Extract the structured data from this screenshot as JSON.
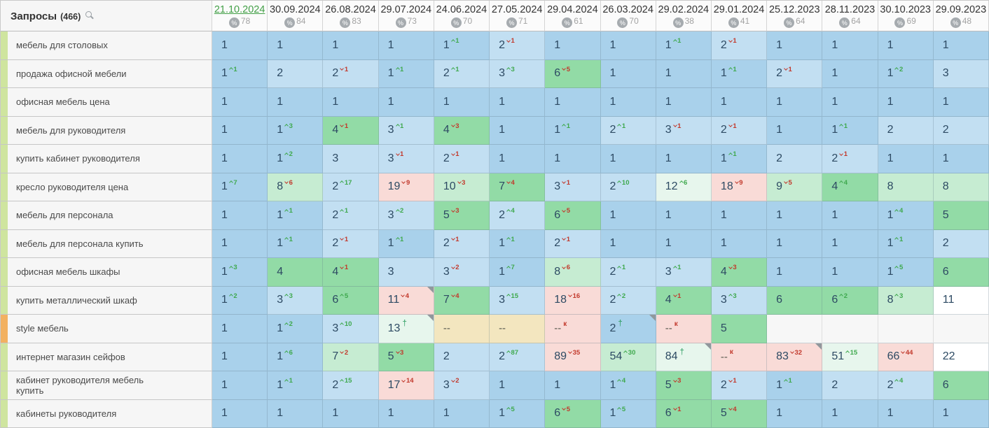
{
  "header": {
    "title": "Запросы",
    "count": "(466)",
    "search_icon": "magnifier",
    "percent_icon": "%"
  },
  "palette": {
    "selected_date_green": "#43a047",
    "change_up_green": "#3fa94e",
    "change_down_red": "#c2392c",
    "cell_blue": "#a9d1eb",
    "cell_blue_light": "#c2dff2",
    "cell_green": "#92dba6",
    "cell_green_pale": "#c6ecd2",
    "cell_green_faint": "#e7f6ed",
    "cell_pink": "#f9dbd7",
    "cell_tan": "#f3e6bf",
    "cell_white": "#ffffff",
    "cell_empty": "#f7f7f7",
    "strip_green": "#cfe59f",
    "strip_orange": "#f2b161",
    "cell_text": "#2d4a63"
  },
  "columns": [
    {
      "date": "21.10.2024",
      "visibility": "78",
      "selected": true
    },
    {
      "date": "30.09.2024",
      "visibility": "84"
    },
    {
      "date": "26.08.2024",
      "visibility": "83"
    },
    {
      "date": "29.07.2024",
      "visibility": "73"
    },
    {
      "date": "24.06.2024",
      "visibility": "70"
    },
    {
      "date": "27.05.2024",
      "visibility": "71"
    },
    {
      "date": "29.04.2024",
      "visibility": "61"
    },
    {
      "date": "26.03.2024",
      "visibility": "70"
    },
    {
      "date": "29.02.2024",
      "visibility": "38"
    },
    {
      "date": "29.01.2024",
      "visibility": "41"
    },
    {
      "date": "25.12.2023",
      "visibility": "64"
    },
    {
      "date": "28.11.2023",
      "visibility": "64"
    },
    {
      "date": "30.10.2023",
      "visibility": "69"
    },
    {
      "date": "29.09.2023",
      "visibility": "48"
    }
  ],
  "rows": [
    {
      "keyword": "мебель для столовых",
      "strip": "green",
      "cells": [
        {
          "v": "1",
          "bg": "b"
        },
        {
          "v": "1",
          "bg": "b"
        },
        {
          "v": "1",
          "bg": "b"
        },
        {
          "v": "1",
          "bg": "b"
        },
        {
          "v": "1",
          "chg": 1,
          "dir": "up",
          "bg": "b"
        },
        {
          "v": "2",
          "chg": 1,
          "dir": "down",
          "bg": "bl"
        },
        {
          "v": "1",
          "bg": "b"
        },
        {
          "v": "1",
          "bg": "b"
        },
        {
          "v": "1",
          "chg": 1,
          "dir": "up",
          "bg": "b"
        },
        {
          "v": "2",
          "chg": 1,
          "dir": "down",
          "bg": "bl"
        },
        {
          "v": "1",
          "bg": "b"
        },
        {
          "v": "1",
          "bg": "b"
        },
        {
          "v": "1",
          "bg": "b"
        },
        {
          "v": "1",
          "bg": "b"
        }
      ]
    },
    {
      "keyword": "продажа офисной мебели",
      "strip": "green",
      "cells": [
        {
          "v": "1",
          "chg": 1,
          "dir": "up",
          "bg": "b"
        },
        {
          "v": "2",
          "bg": "bl"
        },
        {
          "v": "2",
          "chg": 1,
          "dir": "down",
          "bg": "bl"
        },
        {
          "v": "1",
          "chg": 1,
          "dir": "up",
          "bg": "b"
        },
        {
          "v": "2",
          "chg": 1,
          "dir": "up",
          "bg": "bl"
        },
        {
          "v": "3",
          "chg": 3,
          "dir": "up",
          "bg": "bl"
        },
        {
          "v": "6",
          "chg": 5,
          "dir": "down",
          "bg": "g"
        },
        {
          "v": "1",
          "bg": "b"
        },
        {
          "v": "1",
          "bg": "b"
        },
        {
          "v": "1",
          "chg": 1,
          "dir": "up",
          "bg": "b"
        },
        {
          "v": "2",
          "chg": 1,
          "dir": "down",
          "bg": "bl"
        },
        {
          "v": "1",
          "bg": "b"
        },
        {
          "v": "1",
          "chg": 2,
          "dir": "up",
          "bg": "b"
        },
        {
          "v": "3",
          "bg": "bl"
        }
      ]
    },
    {
      "keyword": "офисная мебель цена",
      "strip": "green",
      "cells": [
        {
          "v": "1",
          "bg": "b"
        },
        {
          "v": "1",
          "bg": "b"
        },
        {
          "v": "1",
          "bg": "b"
        },
        {
          "v": "1",
          "bg": "b"
        },
        {
          "v": "1",
          "bg": "b"
        },
        {
          "v": "1",
          "bg": "b"
        },
        {
          "v": "1",
          "bg": "b"
        },
        {
          "v": "1",
          "bg": "b"
        },
        {
          "v": "1",
          "bg": "b"
        },
        {
          "v": "1",
          "bg": "b"
        },
        {
          "v": "1",
          "bg": "b"
        },
        {
          "v": "1",
          "bg": "b"
        },
        {
          "v": "1",
          "bg": "b"
        },
        {
          "v": "1",
          "bg": "b"
        }
      ]
    },
    {
      "keyword": "мебель для руководителя",
      "strip": "green",
      "cells": [
        {
          "v": "1",
          "bg": "b"
        },
        {
          "v": "1",
          "chg": 3,
          "dir": "up",
          "bg": "b"
        },
        {
          "v": "4",
          "chg": 1,
          "dir": "down",
          "bg": "g"
        },
        {
          "v": "3",
          "chg": 1,
          "dir": "up",
          "bg": "bl"
        },
        {
          "v": "4",
          "chg": 3,
          "dir": "down",
          "bg": "g"
        },
        {
          "v": "1",
          "bg": "b"
        },
        {
          "v": "1",
          "chg": 1,
          "dir": "up",
          "bg": "b"
        },
        {
          "v": "2",
          "chg": 1,
          "dir": "up",
          "bg": "bl"
        },
        {
          "v": "3",
          "chg": 1,
          "dir": "down",
          "bg": "bl"
        },
        {
          "v": "2",
          "chg": 1,
          "dir": "down",
          "bg": "bl"
        },
        {
          "v": "1",
          "bg": "b"
        },
        {
          "v": "1",
          "chg": 1,
          "dir": "up",
          "bg": "b"
        },
        {
          "v": "2",
          "bg": "bl"
        },
        {
          "v": "2",
          "bg": "bl"
        }
      ]
    },
    {
      "keyword": "купить кабинет руководителя",
      "strip": "green",
      "cells": [
        {
          "v": "1",
          "bg": "b"
        },
        {
          "v": "1",
          "chg": 2,
          "dir": "up",
          "bg": "b"
        },
        {
          "v": "3",
          "bg": "bl"
        },
        {
          "v": "3",
          "chg": 1,
          "dir": "down",
          "bg": "bl"
        },
        {
          "v": "2",
          "chg": 1,
          "dir": "down",
          "bg": "bl"
        },
        {
          "v": "1",
          "bg": "b"
        },
        {
          "v": "1",
          "bg": "b"
        },
        {
          "v": "1",
          "bg": "b"
        },
        {
          "v": "1",
          "bg": "b"
        },
        {
          "v": "1",
          "chg": 1,
          "dir": "up",
          "bg": "b"
        },
        {
          "v": "2",
          "bg": "bl"
        },
        {
          "v": "2",
          "chg": 1,
          "dir": "down",
          "bg": "bl"
        },
        {
          "v": "1",
          "bg": "b"
        },
        {
          "v": "1",
          "bg": "b"
        }
      ]
    },
    {
      "keyword": "кресло руководителя цена",
      "strip": "green",
      "cells": [
        {
          "v": "1",
          "chg": 7,
          "dir": "up",
          "bg": "b"
        },
        {
          "v": "8",
          "chg": 6,
          "dir": "down",
          "bg": "gp"
        },
        {
          "v": "2",
          "chg": 17,
          "dir": "up",
          "bg": "bl"
        },
        {
          "v": "19",
          "chg": 9,
          "dir": "down",
          "bg": "p"
        },
        {
          "v": "10",
          "chg": 3,
          "dir": "down",
          "bg": "gp"
        },
        {
          "v": "7",
          "chg": 4,
          "dir": "down",
          "bg": "g"
        },
        {
          "v": "3",
          "chg": 1,
          "dir": "down",
          "bg": "bl"
        },
        {
          "v": "2",
          "chg": 10,
          "dir": "up",
          "bg": "bl"
        },
        {
          "v": "12",
          "chg": 6,
          "dir": "up",
          "bg": "gf"
        },
        {
          "v": "18",
          "chg": 9,
          "dir": "down",
          "bg": "p"
        },
        {
          "v": "9",
          "chg": 5,
          "dir": "down",
          "bg": "gp"
        },
        {
          "v": "4",
          "chg": 4,
          "dir": "up",
          "bg": "g"
        },
        {
          "v": "8",
          "bg": "gp"
        },
        {
          "v": "8",
          "bg": "gp"
        }
      ]
    },
    {
      "keyword": "мебель для персонала",
      "strip": "green",
      "cells": [
        {
          "v": "1",
          "bg": "b"
        },
        {
          "v": "1",
          "chg": 1,
          "dir": "up",
          "bg": "b"
        },
        {
          "v": "2",
          "chg": 1,
          "dir": "up",
          "bg": "bl"
        },
        {
          "v": "3",
          "chg": 2,
          "dir": "up",
          "bg": "bl"
        },
        {
          "v": "5",
          "chg": 3,
          "dir": "down",
          "bg": "g"
        },
        {
          "v": "2",
          "chg": 4,
          "dir": "up",
          "bg": "bl"
        },
        {
          "v": "6",
          "chg": 5,
          "dir": "down",
          "bg": "g"
        },
        {
          "v": "1",
          "bg": "b"
        },
        {
          "v": "1",
          "bg": "b"
        },
        {
          "v": "1",
          "bg": "b"
        },
        {
          "v": "1",
          "bg": "b"
        },
        {
          "v": "1",
          "bg": "b"
        },
        {
          "v": "1",
          "chg": 4,
          "dir": "up",
          "bg": "b"
        },
        {
          "v": "5",
          "bg": "g"
        }
      ]
    },
    {
      "keyword": "мебель для персонала купить",
      "strip": "green",
      "cells": [
        {
          "v": "1",
          "bg": "b"
        },
        {
          "v": "1",
          "chg": 1,
          "dir": "up",
          "bg": "b"
        },
        {
          "v": "2",
          "chg": 1,
          "dir": "down",
          "bg": "bl"
        },
        {
          "v": "1",
          "chg": 1,
          "dir": "up",
          "bg": "b"
        },
        {
          "v": "2",
          "chg": 1,
          "dir": "down",
          "bg": "bl"
        },
        {
          "v": "1",
          "chg": 1,
          "dir": "up",
          "bg": "b"
        },
        {
          "v": "2",
          "chg": 1,
          "dir": "down",
          "bg": "bl"
        },
        {
          "v": "1",
          "bg": "b"
        },
        {
          "v": "1",
          "bg": "b"
        },
        {
          "v": "1",
          "bg": "b"
        },
        {
          "v": "1",
          "bg": "b"
        },
        {
          "v": "1",
          "bg": "b"
        },
        {
          "v": "1",
          "chg": 1,
          "dir": "up",
          "bg": "b"
        },
        {
          "v": "2",
          "bg": "bl"
        }
      ]
    },
    {
      "keyword": "офисная мебель шкафы",
      "strip": "green",
      "cells": [
        {
          "v": "1",
          "chg": 3,
          "dir": "up",
          "bg": "b"
        },
        {
          "v": "4",
          "bg": "g"
        },
        {
          "v": "4",
          "chg": 1,
          "dir": "down",
          "bg": "g"
        },
        {
          "v": "3",
          "bg": "bl"
        },
        {
          "v": "3",
          "chg": 2,
          "dir": "down",
          "bg": "bl"
        },
        {
          "v": "1",
          "chg": 7,
          "dir": "up",
          "bg": "b"
        },
        {
          "v": "8",
          "chg": 6,
          "dir": "down",
          "bg": "gp"
        },
        {
          "v": "2",
          "chg": 1,
          "dir": "up",
          "bg": "bl"
        },
        {
          "v": "3",
          "chg": 1,
          "dir": "up",
          "bg": "bl"
        },
        {
          "v": "4",
          "chg": 3,
          "dir": "down",
          "bg": "g"
        },
        {
          "v": "1",
          "bg": "b"
        },
        {
          "v": "1",
          "bg": "b"
        },
        {
          "v": "1",
          "chg": 5,
          "dir": "up",
          "bg": "b"
        },
        {
          "v": "6",
          "bg": "g"
        }
      ]
    },
    {
      "keyword": "купить металлический шкаф",
      "strip": "green",
      "cells": [
        {
          "v": "1",
          "chg": 2,
          "dir": "up",
          "bg": "b"
        },
        {
          "v": "3",
          "chg": 3,
          "dir": "up",
          "bg": "bl"
        },
        {
          "v": "6",
          "chg": 5,
          "dir": "up",
          "bg": "g"
        },
        {
          "v": "11",
          "chg": 4,
          "dir": "down",
          "bg": "p",
          "corner": true
        },
        {
          "v": "7",
          "chg": 4,
          "dir": "down",
          "bg": "g"
        },
        {
          "v": "3",
          "chg": 15,
          "dir": "up",
          "bg": "bl"
        },
        {
          "v": "18",
          "chg": 16,
          "dir": "down",
          "bg": "p"
        },
        {
          "v": "2",
          "chg": 2,
          "dir": "up",
          "bg": "bl"
        },
        {
          "v": "4",
          "chg": 1,
          "dir": "down",
          "bg": "g"
        },
        {
          "v": "3",
          "chg": 3,
          "dir": "up",
          "bg": "bl"
        },
        {
          "v": "6",
          "bg": "g"
        },
        {
          "v": "6",
          "chg": 2,
          "dir": "up",
          "bg": "g"
        },
        {
          "v": "8",
          "chg": 3,
          "dir": "up",
          "bg": "gp"
        },
        {
          "v": "11",
          "bg": "w"
        }
      ]
    },
    {
      "keyword": "style мебель",
      "strip": "orange",
      "cells": [
        {
          "v": "1",
          "bg": "b"
        },
        {
          "v": "1",
          "chg": 2,
          "dir": "up",
          "bg": "b"
        },
        {
          "v": "3",
          "chg": 10,
          "dir": "up",
          "bg": "bl"
        },
        {
          "v": "13",
          "dir": "new",
          "bg": "gf",
          "corner": true
        },
        {
          "v": "--",
          "bg": "t"
        },
        {
          "v": "--",
          "bg": "t"
        },
        {
          "v": "--",
          "dir": "out",
          "bg": "p"
        },
        {
          "v": "2",
          "dir": "new",
          "bg": "b",
          "corner": true
        },
        {
          "v": "--",
          "dir": "out",
          "bg": "p"
        },
        {
          "v": "5",
          "bg": "g"
        },
        {
          "bg": "e"
        },
        {
          "bg": "e"
        },
        {
          "bg": "e"
        },
        {
          "bg": "e"
        }
      ]
    },
    {
      "keyword": "интернет магазин сейфов",
      "strip": "green",
      "cells": [
        {
          "v": "1",
          "bg": "b"
        },
        {
          "v": "1",
          "chg": 6,
          "dir": "up",
          "bg": "b"
        },
        {
          "v": "7",
          "chg": 2,
          "dir": "down",
          "bg": "gp"
        },
        {
          "v": "5",
          "chg": 3,
          "dir": "down",
          "bg": "g"
        },
        {
          "v": "2",
          "bg": "bl"
        },
        {
          "v": "2",
          "chg": 87,
          "dir": "up",
          "bg": "bl"
        },
        {
          "v": "89",
          "chg": 35,
          "dir": "down",
          "bg": "p"
        },
        {
          "v": "54",
          "chg": 30,
          "dir": "up",
          "bg": "gp"
        },
        {
          "v": "84",
          "dir": "new",
          "bg": "gf",
          "corner": true
        },
        {
          "v": "--",
          "dir": "out",
          "bg": "p"
        },
        {
          "v": "83",
          "chg": 32,
          "dir": "down",
          "bg": "p",
          "corner": true
        },
        {
          "v": "51",
          "chg": 15,
          "dir": "up",
          "bg": "gf"
        },
        {
          "v": "66",
          "chg": 44,
          "dir": "down",
          "bg": "p"
        },
        {
          "v": "22",
          "bg": "w"
        }
      ]
    },
    {
      "keyword": "кабинет руководителя мебель купить",
      "strip": "green",
      "cells": [
        {
          "v": "1",
          "bg": "b"
        },
        {
          "v": "1",
          "chg": 1,
          "dir": "up",
          "bg": "b"
        },
        {
          "v": "2",
          "chg": 15,
          "dir": "up",
          "bg": "bl"
        },
        {
          "v": "17",
          "chg": 14,
          "dir": "down",
          "bg": "p"
        },
        {
          "v": "3",
          "chg": 2,
          "dir": "down",
          "bg": "bl"
        },
        {
          "v": "1",
          "bg": "b"
        },
        {
          "v": "1",
          "bg": "b"
        },
        {
          "v": "1",
          "chg": 4,
          "dir": "up",
          "bg": "b"
        },
        {
          "v": "5",
          "chg": 3,
          "dir": "down",
          "bg": "g"
        },
        {
          "v": "2",
          "chg": 1,
          "dir": "down",
          "bg": "bl"
        },
        {
          "v": "1",
          "chg": 1,
          "dir": "up",
          "bg": "b"
        },
        {
          "v": "2",
          "bg": "bl"
        },
        {
          "v": "2",
          "chg": 4,
          "dir": "up",
          "bg": "bl"
        },
        {
          "v": "6",
          "bg": "g"
        }
      ]
    },
    {
      "keyword": "кабинеты руководителя",
      "strip": "green",
      "cells": [
        {
          "v": "1",
          "bg": "b"
        },
        {
          "v": "1",
          "bg": "b"
        },
        {
          "v": "1",
          "bg": "b"
        },
        {
          "v": "1",
          "bg": "b"
        },
        {
          "v": "1",
          "bg": "b"
        },
        {
          "v": "1",
          "chg": 5,
          "dir": "up",
          "bg": "b"
        },
        {
          "v": "6",
          "chg": 5,
          "dir": "down",
          "bg": "g"
        },
        {
          "v": "1",
          "chg": 5,
          "dir": "up",
          "bg": "b"
        },
        {
          "v": "6",
          "chg": 1,
          "dir": "down",
          "bg": "g"
        },
        {
          "v": "5",
          "chg": 4,
          "dir": "down",
          "bg": "g"
        },
        {
          "v": "1",
          "bg": "b"
        },
        {
          "v": "1",
          "bg": "b"
        },
        {
          "v": "1",
          "bg": "b"
        },
        {
          "v": "1",
          "bg": "b"
        }
      ]
    }
  ],
  "markers": {
    "new_entry": "†",
    "dropped_out": "к",
    "not_ranked": "--"
  }
}
